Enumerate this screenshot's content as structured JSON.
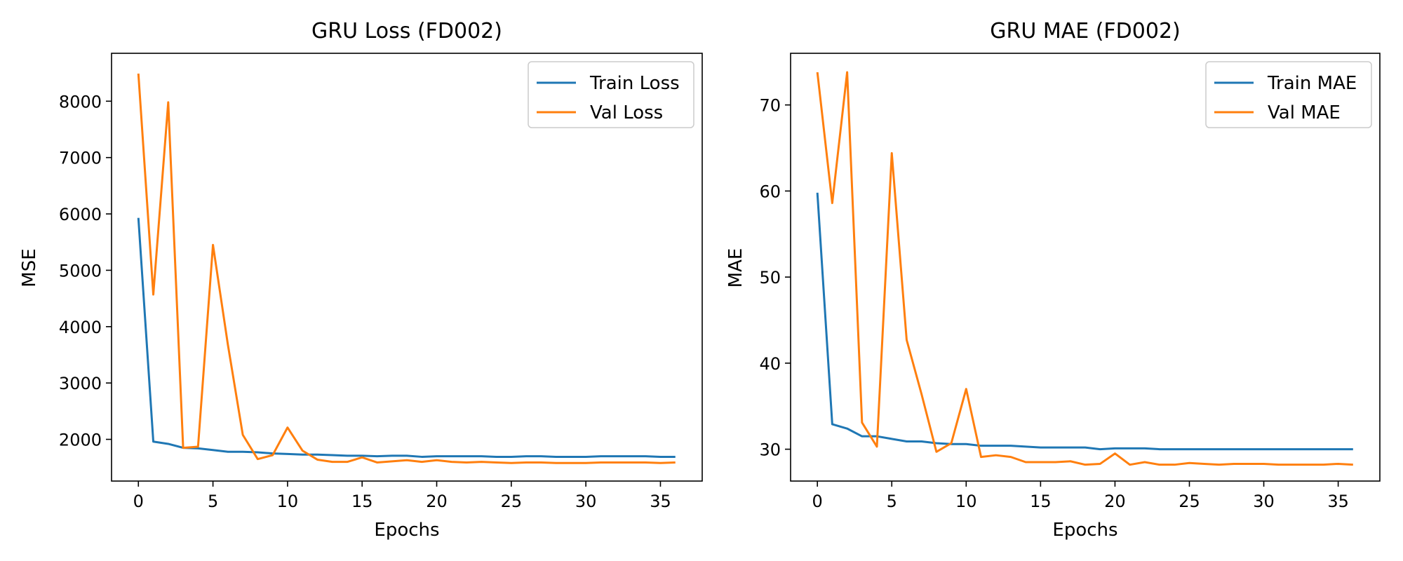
{
  "chart_data": [
    {
      "type": "line",
      "title": "GRU Loss (FD002)",
      "xlabel": "Epochs",
      "ylabel": "MSE",
      "xlim": [
        -1.8,
        37.8
      ],
      "ylim": [
        1260,
        8850
      ],
      "xticks": [
        0,
        5,
        10,
        15,
        20,
        25,
        30,
        35
      ],
      "yticks": [
        2000,
        3000,
        4000,
        5000,
        6000,
        7000,
        8000
      ],
      "grid": false,
      "legend": "top-right",
      "x": [
        0,
        1,
        2,
        3,
        4,
        5,
        6,
        7,
        8,
        9,
        10,
        11,
        12,
        13,
        14,
        15,
        16,
        17,
        18,
        19,
        20,
        21,
        22,
        23,
        24,
        25,
        26,
        27,
        28,
        29,
        30,
        31,
        32,
        33,
        34,
        35,
        36
      ],
      "series": [
        {
          "name": "Train Loss",
          "color": "#1f77b4",
          "values": [
            5930,
            1960,
            1920,
            1850,
            1840,
            1810,
            1780,
            1780,
            1770,
            1750,
            1740,
            1730,
            1730,
            1720,
            1710,
            1710,
            1700,
            1710,
            1710,
            1690,
            1700,
            1700,
            1700,
            1700,
            1690,
            1690,
            1700,
            1700,
            1690,
            1690,
            1690,
            1700,
            1700,
            1700,
            1700,
            1690,
            1690
          ]
        },
        {
          "name": "Val Loss",
          "color": "#ff7f0e",
          "values": [
            8490,
            4570,
            7980,
            1850,
            1870,
            5450,
            3680,
            2080,
            1650,
            1720,
            2210,
            1800,
            1640,
            1600,
            1600,
            1680,
            1590,
            1610,
            1630,
            1600,
            1630,
            1600,
            1590,
            1600,
            1590,
            1580,
            1590,
            1590,
            1580,
            1580,
            1580,
            1590,
            1590,
            1590,
            1590,
            1580,
            1590
          ]
        }
      ]
    },
    {
      "type": "line",
      "title": "GRU MAE (FD002)",
      "xlabel": "Epochs",
      "ylabel": "MAE",
      "xlim": [
        -1.8,
        37.8
      ],
      "ylim": [
        26.3,
        76.0
      ],
      "xticks": [
        0,
        5,
        10,
        15,
        20,
        25,
        30,
        35
      ],
      "yticks": [
        30,
        40,
        50,
        60,
        70
      ],
      "grid": false,
      "legend": "top-right",
      "x": [
        0,
        1,
        2,
        3,
        4,
        5,
        6,
        7,
        8,
        9,
        10,
        11,
        12,
        13,
        14,
        15,
        16,
        17,
        18,
        19,
        20,
        21,
        22,
        23,
        24,
        25,
        26,
        27,
        28,
        29,
        30,
        31,
        32,
        33,
        34,
        35,
        36
      ],
      "series": [
        {
          "name": "Train MAE",
          "color": "#1f77b4",
          "values": [
            59.8,
            32.9,
            32.4,
            31.5,
            31.5,
            31.2,
            30.9,
            30.9,
            30.7,
            30.6,
            30.6,
            30.4,
            30.4,
            30.4,
            30.3,
            30.2,
            30.2,
            30.2,
            30.2,
            30.0,
            30.1,
            30.1,
            30.1,
            30.0,
            30.0,
            30.0,
            30.0,
            30.0,
            30.0,
            30.0,
            30.0,
            30.0,
            30.0,
            30.0,
            30.0,
            30.0,
            30.0
          ]
        },
        {
          "name": "Val MAE",
          "color": "#ff7f0e",
          "values": [
            73.8,
            58.6,
            73.8,
            33.1,
            30.3,
            64.4,
            42.7,
            36.4,
            29.7,
            30.7,
            37.0,
            29.1,
            29.3,
            29.1,
            28.5,
            28.5,
            28.5,
            28.6,
            28.2,
            28.3,
            29.5,
            28.2,
            28.5,
            28.2,
            28.2,
            28.4,
            28.3,
            28.2,
            28.3,
            28.3,
            28.3,
            28.2,
            28.2,
            28.2,
            28.2,
            28.3,
            28.2
          ]
        }
      ]
    }
  ]
}
